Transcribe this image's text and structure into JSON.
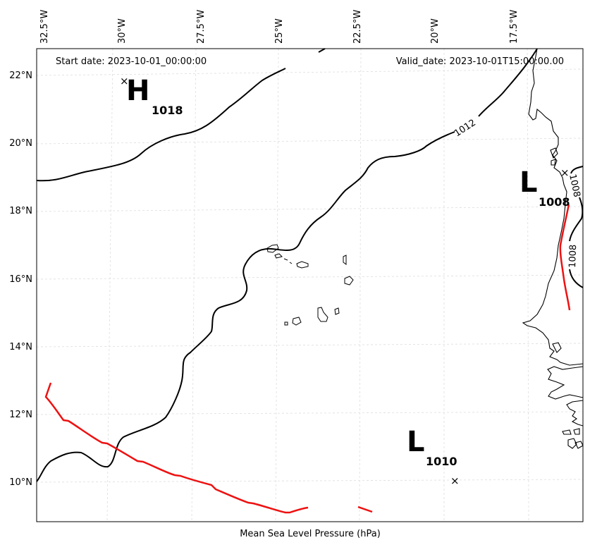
{
  "header": {
    "start_date": "Start date: 2023-10-01_00:00:00",
    "valid_date": "Valid_date: 2023-10-01T15:00:00.00"
  },
  "caption": "Mean Sea Level Pressure (hPa)",
  "axes": {
    "lon_ticks": [
      "32.5°W",
      "30°W",
      "27.5°W",
      "25°W",
      "22.5°W",
      "20°W",
      "17.5°W"
    ],
    "lat_ticks": [
      "22°N",
      "20°N",
      "18°N",
      "16°N",
      "14°N",
      "12°N",
      "10°N"
    ]
  },
  "pressure_centers": [
    {
      "type": "H",
      "value": "1018"
    },
    {
      "type": "L",
      "value": "1008"
    },
    {
      "type": "L",
      "value": "1010"
    }
  ],
  "isobar_labels": [
    "1012",
    "1008",
    "1008"
  ],
  "colors": {
    "isobar": "#000000",
    "trough": "#ee1111",
    "grid": "#d9d9d9",
    "coast": "#000000"
  }
}
